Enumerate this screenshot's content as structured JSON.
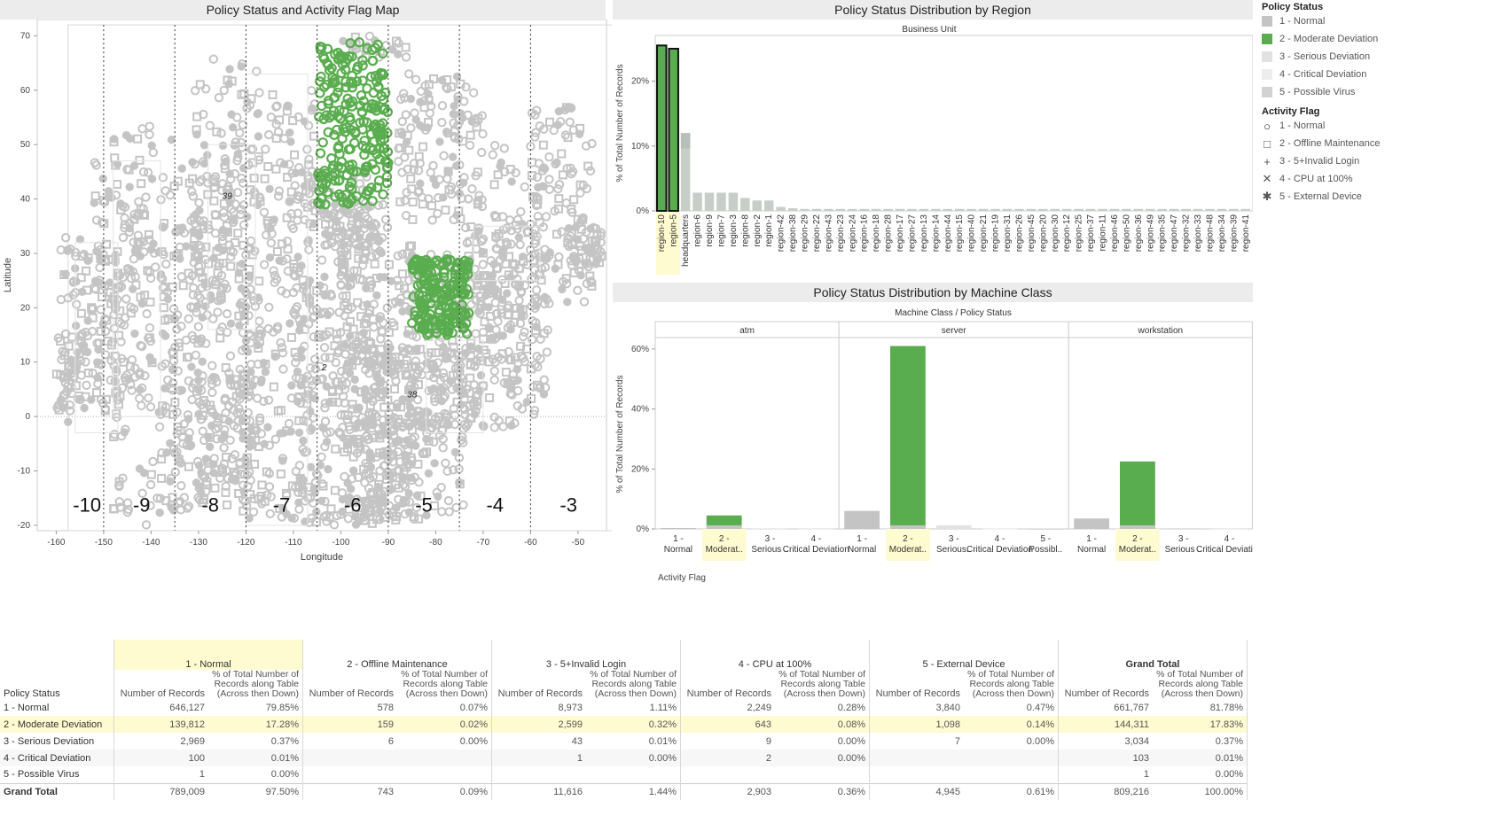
{
  "map": {
    "title": "Policy Status and Activity Flag Map",
    "xlabel": "Longitude",
    "ylabel": "Latitude",
    "xticks": [
      -160,
      -150,
      -140,
      -130,
      -120,
      -110,
      -100,
      -90,
      -80,
      -70,
      -60,
      -50
    ],
    "yticks": [
      70,
      60,
      50,
      40,
      30,
      20,
      10,
      0,
      -10,
      -20
    ],
    "zones": [
      "-10",
      "-9",
      "-8",
      "-7",
      "-6",
      "-5",
      "-4",
      "-3"
    ],
    "cluster_labels": [
      "39",
      "2",
      "38"
    ],
    "colors": {
      "normal": "#c4c4c4",
      "moderate": "#5aad4e"
    }
  },
  "region_chart": {
    "title": "Policy Status Distribution by Region",
    "header": "Business Unit",
    "ylabel": "% of Total Number of Records"
  },
  "machine_chart": {
    "title": "Policy Status Distribution by Machine Class",
    "header": "Machine Class  /  Policy Status",
    "ylabel": "% of Total Number of Records",
    "xlabel": "Activity Flag"
  },
  "legend": {
    "policy_title": "Policy Status",
    "policy_items": [
      {
        "label": "1 - Normal",
        "color": "#c4c4c4"
      },
      {
        "label": "2 - Moderate Deviation",
        "color": "#5aad4e"
      },
      {
        "label": "3 - Serious Deviation",
        "color": "#e2e2e2"
      },
      {
        "label": "4 - Critical Deviation",
        "color": "#ededed"
      },
      {
        "label": "5 - Possible Virus",
        "color": "#d2d2d2"
      }
    ],
    "flag_title": "Activity Flag",
    "flag_items": [
      {
        "label": "1 - Normal",
        "symbol": "circle"
      },
      {
        "label": "2 - Offline Maintenance",
        "symbol": "square"
      },
      {
        "label": "3 - 5+Invalid Login",
        "symbol": "plus"
      },
      {
        "label": "4 - CPU at 100%",
        "symbol": "cross"
      },
      {
        "label": "5 - External Device",
        "symbol": "asterisk"
      }
    ]
  },
  "chart_data": [
    {
      "type": "scatter",
      "title": "Policy Status and Activity Flag Map",
      "xlabel": "Longitude",
      "ylabel": "Latitude",
      "xlim": [
        -164,
        -44
      ],
      "ylim": [
        -21,
        73
      ],
      "clusters": [
        {
          "name": "2 - Moderate Deviation",
          "x_range": [
            -105,
            -90
          ],
          "y_range": [
            39,
            69
          ]
        },
        {
          "name": "2 - Moderate Deviation",
          "x_range": [
            -85,
            -73
          ],
          "y_range": [
            15,
            29
          ]
        }
      ]
    },
    {
      "type": "bar",
      "title": "Policy Status Distribution by Region",
      "ylabel": "% of Total Number of Records",
      "ylim": [
        0,
        26.5
      ],
      "yticks": [
        "0%",
        "10%",
        "20%"
      ],
      "categories": [
        "region-10",
        "region-5",
        "headquarters",
        "region-6",
        "region-9",
        "region-7",
        "region-3",
        "region-8",
        "region-2",
        "region-1",
        "region-42",
        "region-38",
        "region-29",
        "region-22",
        "region-43",
        "region-23",
        "region-24",
        "region-16",
        "region-18",
        "region-28",
        "region-17",
        "region-27",
        "region-13",
        "region-14",
        "region-44",
        "region-15",
        "region-40",
        "region-21",
        "region-19",
        "region-31",
        "region-26",
        "region-45",
        "region-20",
        "region-30",
        "region-12",
        "region-25",
        "region-37",
        "region-11",
        "region-46",
        "region-50",
        "region-36",
        "region-49",
        "region-35",
        "region-47",
        "region-32",
        "region-33",
        "region-48",
        "region-34",
        "region-39",
        "region-41"
      ],
      "series": [
        {
          "name": "1 - Normal",
          "values": [
            0,
            0,
            12.0,
            2.8,
            2.8,
            2.8,
            2.8,
            2.0,
            1.6,
            1.6,
            0.6,
            0.4,
            0.3,
            0.3,
            0.3,
            0.3,
            0.3,
            0.3,
            0.3,
            0.3,
            0.3,
            0.3,
            0.3,
            0.3,
            0.3,
            0.3,
            0.3,
            0.3,
            0.3,
            0.3,
            0.3,
            0.3,
            0.3,
            0.3,
            0.3,
            0.3,
            0.3,
            0.3,
            0.3,
            0.3,
            0.3,
            0.3,
            0.3,
            0.3,
            0.3,
            0.3,
            0.3,
            0.3,
            0.3,
            0.3
          ]
        },
        {
          "name": "2 - Moderate Deviation",
          "values": [
            25.5,
            25.0,
            0,
            0,
            0,
            0,
            0,
            0,
            0,
            0,
            0,
            0,
            0,
            0,
            0,
            0,
            0,
            0,
            0,
            0,
            0,
            0,
            0,
            0,
            0,
            0,
            0,
            0,
            0,
            0,
            0,
            0,
            0,
            0,
            0,
            0,
            0,
            0,
            0,
            0,
            0,
            0,
            0,
            0,
            0,
            0,
            0,
            0,
            0,
            0
          ]
        }
      ],
      "highlight": [
        "region-10",
        "region-5"
      ]
    },
    {
      "type": "bar",
      "title": "Policy Status Distribution by Machine Class",
      "ylabel": "% of Total Number of Records",
      "xlabel": "Activity Flag",
      "ylim": [
        0,
        65
      ],
      "yticks": [
        "0%",
        "20%",
        "40%",
        "60%"
      ],
      "groups": [
        {
          "name": "atm",
          "categories": [
            "1 - Normal",
            "2 - Moderat..",
            "3 - Serious ..",
            "4 - Critical Deviation"
          ],
          "status": [
            "1 - Normal",
            "2 - Moderate Deviation",
            "3 - Serious Deviation",
            "4 - Critical Deviation"
          ],
          "values": [
            0.3,
            4.5,
            0.1,
            0.05
          ]
        },
        {
          "name": "server",
          "categories": [
            "1 - Normal",
            "2 - Moderat..",
            "3 - Serious..",
            "4 - Critical Deviation",
            "5 - Possibl.."
          ],
          "status": [
            "1 - Normal",
            "2 - Moderate Deviation",
            "3 - Serious Deviation",
            "4 - Critical Deviation",
            "5 - Possible Virus"
          ],
          "values": [
            6.0,
            61.0,
            1.2,
            0.1,
            0.05
          ]
        },
        {
          "name": "workstation",
          "categories": [
            "1 - Normal",
            "2 - Moderat..",
            "3 - Serious ..",
            "4 - Critical Deviation"
          ],
          "status": [
            "1 - Normal",
            "2 - Moderate Deviation",
            "3 - Serious Deviation",
            "4 - Critical Deviation"
          ],
          "values": [
            3.5,
            22.5,
            0.3,
            0.05
          ]
        }
      ]
    },
    {
      "type": "table",
      "row_header": "Policy Status",
      "columns": [
        "1 - Normal",
        "2 - Offline Maintenance",
        "3 - 5+Invalid Login",
        "4 - CPU at 100%",
        "5 - External Device",
        "Grand Total"
      ],
      "measures": [
        "Number of Records",
        "% of Total Number of Records along Table (Across then Down)"
      ],
      "rows": [
        {
          "label": "1 - Normal",
          "cells": [
            "646,127",
            "79.85%",
            "578",
            "0.07%",
            "8,973",
            "1.11%",
            "2,249",
            "0.28%",
            "3,840",
            "0.47%",
            "661,767",
            "81.78%"
          ]
        },
        {
          "label": "2 - Moderate Deviation",
          "cells": [
            "139,812",
            "17.28%",
            "159",
            "0.02%",
            "2,599",
            "0.32%",
            "643",
            "0.08%",
            "1,098",
            "0.14%",
            "144,311",
            "17.83%"
          ]
        },
        {
          "label": "3 - Serious Deviation",
          "cells": [
            "2,969",
            "0.37%",
            "6",
            "0.00%",
            "43",
            "0.01%",
            "9",
            "0.00%",
            "7",
            "0.00%",
            "3,034",
            "0.37%"
          ]
        },
        {
          "label": "4 - Critical Deviation",
          "cells": [
            "100",
            "0.01%",
            "",
            "",
            "1",
            "0.00%",
            "2",
            "0.00%",
            "",
            "",
            "103",
            "0.01%"
          ]
        },
        {
          "label": "5 - Possible Virus",
          "cells": [
            "1",
            "0.00%",
            "",
            "",
            "",
            "",
            "",
            "",
            "",
            "",
            "1",
            "0.00%"
          ]
        },
        {
          "label": "Grand Total",
          "cells": [
            "789,009",
            "97.50%",
            "743",
            "0.09%",
            "11,616",
            "1.44%",
            "2,903",
            "0.36%",
            "4,945",
            "0.61%",
            "809,216",
            "100.00%"
          ]
        }
      ]
    }
  ]
}
